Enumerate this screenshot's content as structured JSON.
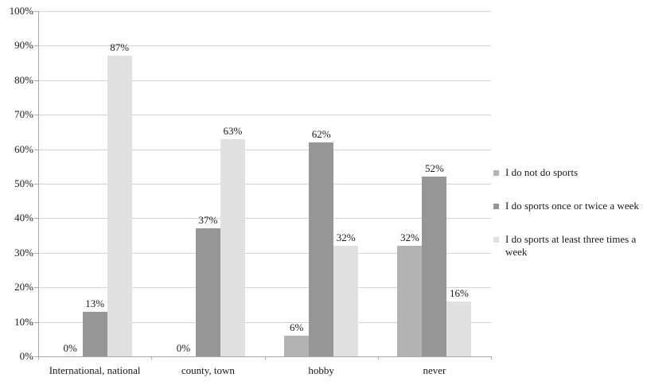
{
  "colors": {
    "background": "#ffffff",
    "gridline": "#d4d4d4",
    "axis": "#a9a9a9",
    "text": "#1a1a1a"
  },
  "chart_data": {
    "type": "bar",
    "title": "",
    "xlabel": "",
    "ylabel": "",
    "grid": true,
    "legend_position": "right",
    "ylim": [
      0,
      100
    ],
    "ytick_step": 10,
    "yticks": [
      {
        "value": 0,
        "label": "0%"
      },
      {
        "value": 10,
        "label": "10%"
      },
      {
        "value": 20,
        "label": "20%"
      },
      {
        "value": 30,
        "label": "30%"
      },
      {
        "value": 40,
        "label": "40%"
      },
      {
        "value": 50,
        "label": "50%"
      },
      {
        "value": 60,
        "label": "60%"
      },
      {
        "value": 70,
        "label": "70%"
      },
      {
        "value": 80,
        "label": "80%"
      },
      {
        "value": 90,
        "label": "90%"
      },
      {
        "value": 100,
        "label": "100%"
      }
    ],
    "categories": [
      "International, national",
      "county, town",
      "hobby",
      "never"
    ],
    "series": [
      {
        "name": "I do not do sports",
        "color": "#b3b3b3",
        "values": [
          0,
          0,
          6,
          32
        ],
        "labels": [
          "0%",
          "0%",
          "6%",
          "32%"
        ]
      },
      {
        "name": "I do sports once or twice a week",
        "color": "#969696",
        "values": [
          13,
          37,
          62,
          52
        ],
        "labels": [
          "13%",
          "37%",
          "62%",
          "52%"
        ]
      },
      {
        "name": "I do sports at least three times a week",
        "color": "#e0e0e0",
        "values": [
          87,
          63,
          32,
          16
        ],
        "labels": [
          "87%",
          "63%",
          "32%",
          "16%"
        ]
      }
    ]
  }
}
